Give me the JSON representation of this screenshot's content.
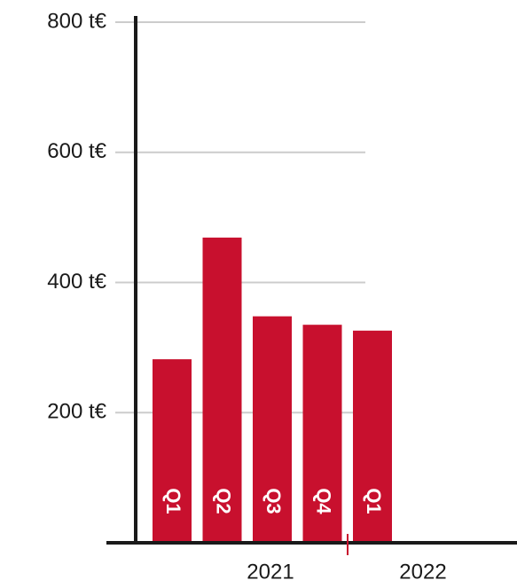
{
  "chart_data": {
    "type": "bar",
    "categories": [
      "Q1",
      "Q2",
      "Q3",
      "Q4",
      "Q1"
    ],
    "values": [
      282,
      469,
      348,
      335,
      326
    ],
    "color": "#c8102e",
    "groups": [
      "2021",
      "2022"
    ],
    "ylim": [
      0,
      800
    ],
    "yticks": [
      {
        "value": 200,
        "label": "200 t€"
      },
      {
        "value": 400,
        "label": "400 t€"
      },
      {
        "value": 600,
        "label": "600 t€"
      },
      {
        "value": 800,
        "label": "800 t€"
      }
    ],
    "grid": true
  }
}
